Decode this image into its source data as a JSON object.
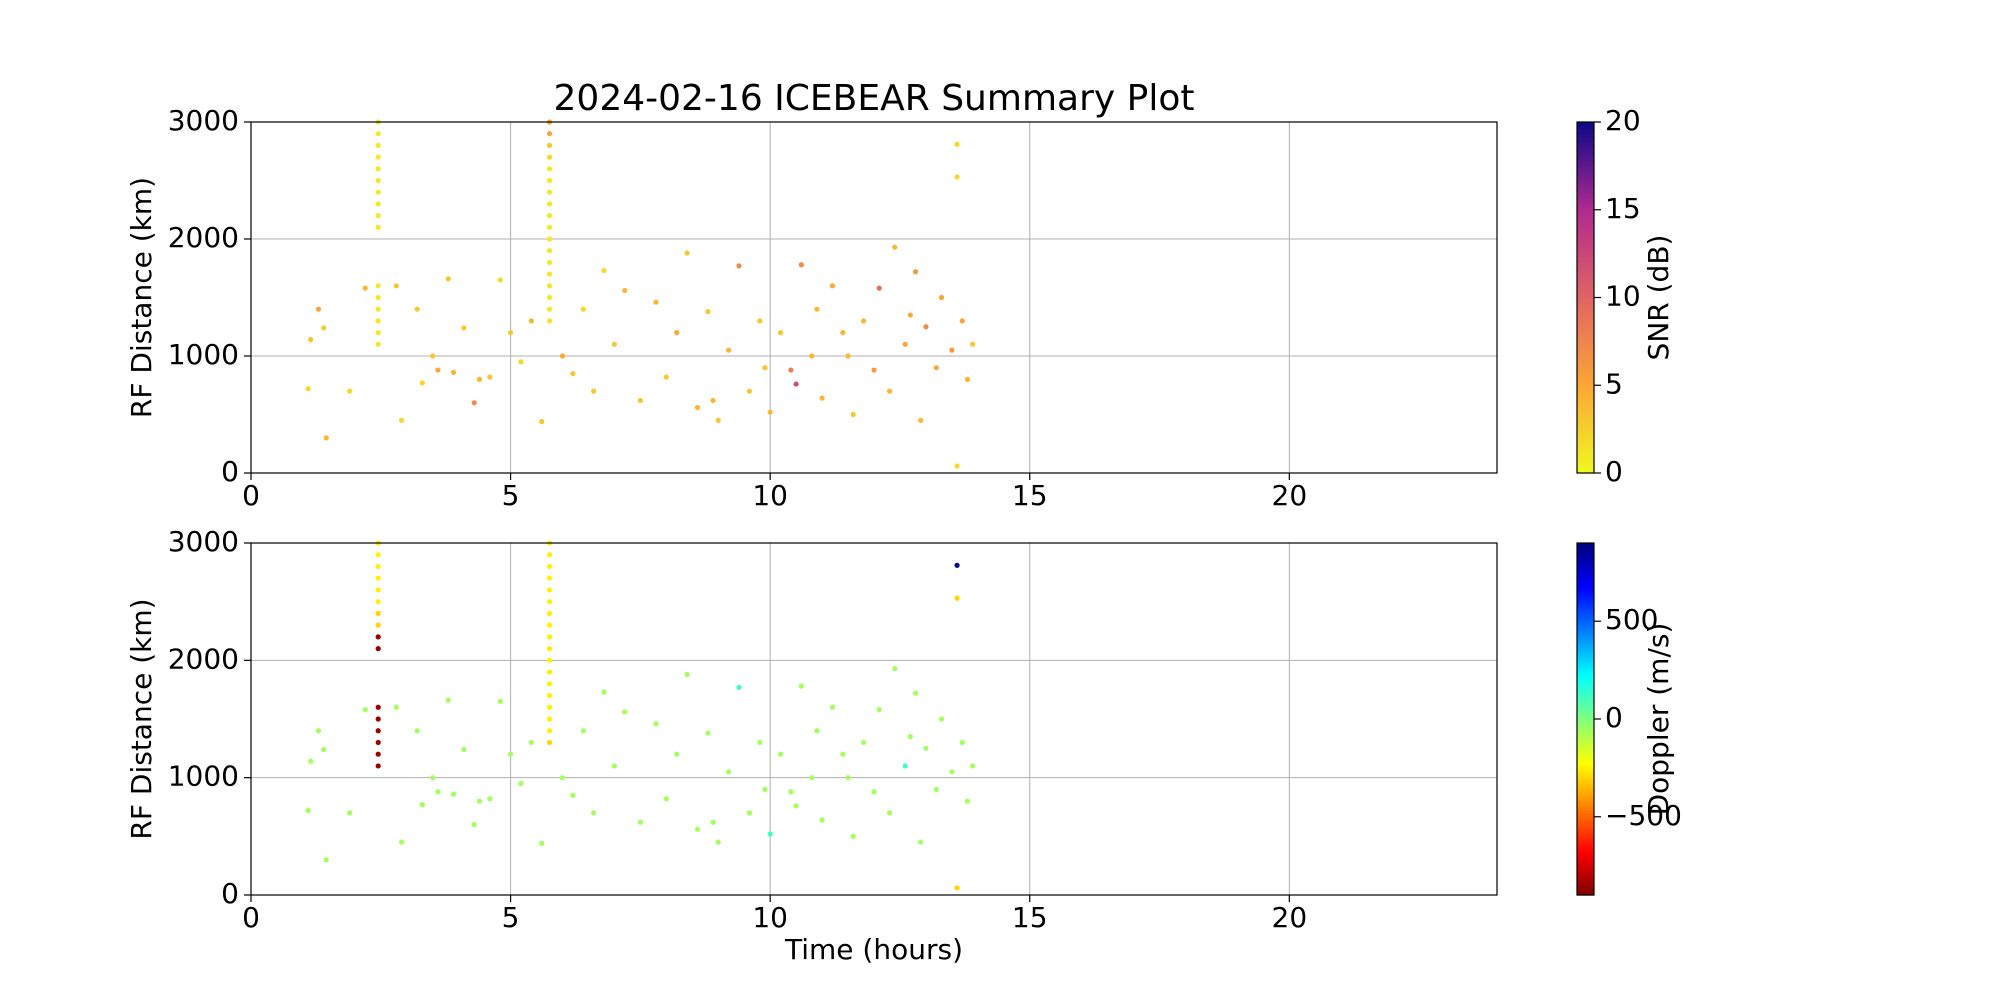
{
  "chart_data": [
    {
      "type": "scatter",
      "title": "2024-02-16 ICEBEAR Summary Plot",
      "ylabel": "RF Distance (km)",
      "xlim": [
        0,
        24
      ],
      "ylim": [
        0,
        3000
      ],
      "xticks": [
        0,
        5,
        10,
        15,
        20
      ],
      "yticks": [
        0,
        1000,
        2000,
        3000
      ],
      "grid": true,
      "colorbar": {
        "label": "SNR (dB)",
        "lim": [
          0,
          20
        ],
        "ticks": [
          0,
          5,
          10,
          15,
          20
        ],
        "cmap": "plasma_r"
      },
      "x": [
        1.1,
        1.15,
        1.3,
        1.4,
        1.45,
        1.9,
        2.2,
        2.8,
        2.9,
        3.2,
        3.3,
        3.5,
        3.6,
        3.8,
        3.9,
        4.1,
        4.3,
        4.4,
        4.6,
        4.8,
        5.0,
        5.2,
        5.4,
        5.6,
        6.0,
        6.2,
        6.4,
        6.6,
        6.8,
        7.0,
        7.2,
        7.5,
        7.8,
        8.0,
        8.2,
        8.4,
        8.6,
        8.8,
        9.0,
        9.2,
        9.4,
        9.6,
        9.8,
        10.0,
        10.2,
        10.4,
        10.5,
        10.6,
        10.8,
        11.0,
        11.2,
        11.4,
        11.6,
        11.8,
        12.0,
        12.1,
        12.3,
        12.4,
        12.6,
        12.8,
        12.9,
        13.0,
        13.2,
        13.3,
        13.5,
        13.6,
        13.6,
        13.6,
        13.7,
        13.8,
        13.9,
        11.5,
        9.9,
        12.7,
        10.9,
        8.9,
        2.45,
        2.45,
        2.45,
        2.45,
        2.45,
        2.45,
        2.45,
        2.45,
        2.45,
        2.45,
        2.45,
        2.45,
        2.45,
        2.45,
        2.45,
        2.45,
        5.75,
        5.75,
        5.75,
        5.75,
        5.75,
        5.75,
        5.75,
        5.75,
        5.75,
        5.75,
        5.75,
        5.75,
        5.75,
        5.75,
        5.75,
        5.75,
        5.75,
        5.75
      ],
      "values": [
        720,
        1140,
        1400,
        1240,
        300,
        700,
        1580,
        1600,
        450,
        1400,
        770,
        1000,
        880,
        1660,
        860,
        1240,
        600,
        800,
        820,
        1650,
        1200,
        950,
        1300,
        440,
        1000,
        850,
        1400,
        700,
        1730,
        1100,
        1560,
        620,
        1460,
        820,
        1200,
        1880,
        560,
        1380,
        450,
        1050,
        1770,
        700,
        1300,
        520,
        1200,
        880,
        760,
        1780,
        1000,
        640,
        1600,
        1200,
        500,
        1300,
        880,
        1580,
        700,
        1930,
        1100,
        1720,
        450,
        1250,
        900,
        1500,
        1050,
        2810,
        2530,
        60,
        1300,
        800,
        1100,
        1000,
        900,
        1350,
        1400,
        620,
        1100,
        1200,
        1300,
        1400,
        1500,
        1600,
        2100,
        2200,
        2300,
        2400,
        2500,
        2600,
        2700,
        2800,
        2900,
        3000,
        1300,
        1400,
        1500,
        1600,
        1700,
        1800,
        1900,
        2000,
        2100,
        2200,
        2300,
        2400,
        2500,
        2600,
        2700,
        2800,
        2900,
        3000
      ],
      "c": [
        2,
        3,
        5,
        3,
        4,
        2,
        4,
        3,
        2,
        3,
        2,
        3,
        5,
        3,
        4,
        3,
        7,
        4,
        3,
        2,
        3,
        2,
        4,
        3,
        5,
        3,
        2,
        3,
        2,
        3,
        4,
        3,
        4,
        3,
        5,
        3,
        4,
        3,
        3,
        4,
        7,
        3,
        3,
        4,
        3,
        8,
        12,
        7,
        4,
        4,
        5,
        4,
        3,
        4,
        6,
        9,
        4,
        4,
        5,
        6,
        4,
        7,
        5,
        5,
        6,
        2,
        2,
        2,
        5,
        4,
        3,
        4,
        3,
        5,
        4,
        4,
        1,
        1,
        1,
        1,
        1,
        1,
        1,
        1,
        1,
        1,
        1,
        1,
        1,
        1,
        1,
        1,
        1,
        1,
        1,
        1,
        1,
        1,
        1,
        1,
        1,
        1,
        1,
        1,
        1,
        1,
        2,
        3,
        5,
        5
      ]
    },
    {
      "type": "scatter",
      "ylabel": "RF Distance (km)",
      "xlabel": "Time (hours)",
      "xlim": [
        0,
        24
      ],
      "ylim": [
        0,
        3000
      ],
      "xticks": [
        0,
        5,
        10,
        15,
        20
      ],
      "yticks": [
        0,
        1000,
        2000,
        3000
      ],
      "grid": true,
      "colorbar": {
        "label": "Doppler (m/s)",
        "lim": [
          -900,
          900
        ],
        "ticks": [
          {
            "value": -500,
            "label": "−500"
          },
          0,
          500
        ],
        "cmap": "jet_r"
      },
      "x": [
        1.1,
        1.15,
        1.3,
        1.4,
        1.45,
        1.9,
        2.2,
        2.8,
        2.9,
        3.2,
        3.3,
        3.5,
        3.6,
        3.8,
        3.9,
        4.1,
        4.3,
        4.4,
        4.6,
        4.8,
        5.0,
        5.2,
        5.4,
        5.6,
        6.0,
        6.2,
        6.4,
        6.6,
        6.8,
        7.0,
        7.2,
        7.5,
        7.8,
        8.0,
        8.2,
        8.4,
        8.6,
        8.8,
        9.0,
        9.2,
        9.4,
        9.6,
        9.8,
        10.0,
        10.2,
        10.4,
        10.5,
        10.6,
        10.8,
        11.0,
        11.2,
        11.4,
        11.6,
        11.8,
        12.0,
        12.1,
        12.3,
        12.4,
        12.6,
        12.8,
        12.9,
        13.0,
        13.2,
        13.3,
        13.5,
        13.6,
        13.6,
        13.6,
        13.7,
        13.8,
        13.9,
        11.5,
        9.9,
        12.7,
        10.9,
        8.9,
        2.45,
        2.45,
        2.45,
        2.45,
        2.45,
        2.45,
        2.45,
        2.45,
        2.45,
        2.45,
        2.45,
        2.45,
        2.45,
        2.45,
        2.45,
        2.45,
        5.75,
        5.75,
        5.75,
        5.75,
        5.75,
        5.75,
        5.75,
        5.75,
        5.75,
        5.75,
        5.75,
        5.75,
        5.75,
        5.75,
        5.75,
        5.75,
        5.75,
        5.75
      ],
      "values": [
        720,
        1140,
        1400,
        1240,
        300,
        700,
        1580,
        1600,
        450,
        1400,
        770,
        1000,
        880,
        1660,
        860,
        1240,
        600,
        800,
        820,
        1650,
        1200,
        950,
        1300,
        440,
        1000,
        850,
        1400,
        700,
        1730,
        1100,
        1560,
        620,
        1460,
        820,
        1200,
        1880,
        560,
        1380,
        450,
        1050,
        1770,
        700,
        1300,
        520,
        1200,
        880,
        760,
        1780,
        1000,
        640,
        1600,
        1200,
        500,
        1300,
        880,
        1580,
        700,
        1930,
        1100,
        1720,
        450,
        1250,
        900,
        1500,
        1050,
        2810,
        2530,
        60,
        1300,
        800,
        1100,
        1000,
        900,
        1350,
        1400,
        620,
        1100,
        1200,
        1300,
        1400,
        1500,
        1600,
        2100,
        2200,
        2300,
        2400,
        2500,
        2600,
        2700,
        2800,
        2900,
        3000,
        1300,
        1400,
        1500,
        1600,
        1700,
        1800,
        1900,
        2000,
        2100,
        2200,
        2300,
        2400,
        2500,
        2600,
        2700,
        2800,
        2900,
        3000
      ],
      "c": [
        -60,
        -60,
        -60,
        -60,
        -60,
        -60,
        -60,
        -60,
        -60,
        -60,
        -60,
        -60,
        -60,
        -60,
        -60,
        -60,
        -60,
        -60,
        -60,
        -60,
        -60,
        -60,
        -60,
        -60,
        -60,
        -60,
        -60,
        -60,
        -60,
        -60,
        -60,
        -60,
        -60,
        -60,
        -60,
        -60,
        -60,
        -60,
        -60,
        -60,
        120,
        -60,
        -60,
        120,
        -60,
        -60,
        -60,
        -60,
        -60,
        -60,
        -60,
        -60,
        -60,
        -60,
        -60,
        -60,
        -60,
        -60,
        120,
        -60,
        -60,
        -60,
        -60,
        -60,
        -60,
        850,
        -300,
        -300,
        -60,
        -60,
        -60,
        -60,
        -60,
        -60,
        -60,
        -60,
        -850,
        -850,
        -850,
        -850,
        -850,
        -850,
        -850,
        -850,
        -300,
        -300,
        -250,
        -250,
        -250,
        -250,
        -250,
        -250,
        -300,
        -250,
        -250,
        -250,
        -250,
        -250,
        -250,
        -250,
        -250,
        -250,
        -250,
        -250,
        -250,
        -250,
        -250,
        -250,
        -250,
        -250
      ]
    }
  ]
}
